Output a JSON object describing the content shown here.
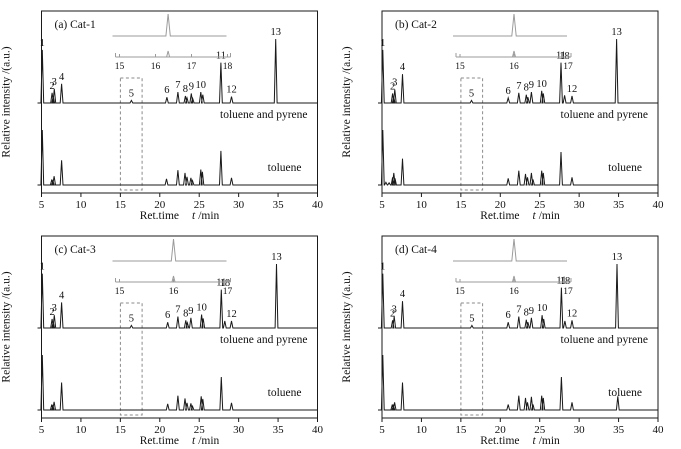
{
  "figure": {
    "ylabel": "Relative intensity /(a.u.)",
    "xlabel": {
      "prefix": "Ret.time",
      "italic": "t",
      "suffix": "/min"
    },
    "x_ticks": [
      5,
      10,
      15,
      20,
      25,
      30,
      35,
      40
    ],
    "xlim": [
      5,
      40
    ],
    "ink_color": "#1a1a1a",
    "inset_line_color": "#9b9b9b",
    "dashed_box_color": "#8a8a8a",
    "background_color": "#ffffff"
  },
  "chart_data": {
    "type": "line",
    "description": "GC chromatograms; peaks as [retention_time_min, relative_height, label?, label_y?]",
    "panels": [
      {
        "id": "a",
        "title": "(a) Cat-1",
        "inset": {
          "ticks": [
            15,
            16,
            17,
            18
          ],
          "peak_t": 16.35
        },
        "dashed_box": {
          "t1": 15.0,
          "t2": 17.75
        },
        "traces": [
          {
            "caption": "toluene  and pyrene",
            "peaks": [
              [
                5.1,
                0.83,
                "1"
              ],
              [
                6.35,
                0.16,
                "2"
              ],
              [
                6.48,
                0.1
              ],
              [
                6.62,
                0.22,
                "3"
              ],
              [
                7.55,
                0.3,
                "4"
              ],
              [
                16.4,
                0.04,
                "5"
              ],
              [
                20.9,
                0.09,
                "6"
              ],
              [
                22.3,
                0.17,
                "7"
              ],
              [
                23.25,
                0.11,
                "8"
              ],
              [
                23.45,
                0.08
              ],
              [
                24.0,
                0.15,
                "9"
              ],
              [
                24.18,
                0.07
              ],
              [
                25.2,
                0.17,
                "10"
              ],
              [
                25.45,
                0.13
              ],
              [
                27.75,
                0.63,
                "11"
              ],
              [
                29.1,
                0.1,
                "12"
              ],
              [
                34.7,
                1.0,
                "13"
              ]
            ]
          },
          {
            "caption": "toluene",
            "peaks": [
              [
                5.1,
                1.0
              ],
              [
                6.3,
                0.1
              ],
              [
                6.45,
                0.07
              ],
              [
                6.6,
                0.16
              ],
              [
                7.55,
                0.45
              ],
              [
                20.85,
                0.11
              ],
              [
                22.3,
                0.27
              ],
              [
                23.2,
                0.22
              ],
              [
                23.45,
                0.15
              ],
              [
                23.95,
                0.13
              ],
              [
                24.15,
                0.08
              ],
              [
                25.2,
                0.28
              ],
              [
                25.4,
                0.24
              ],
              [
                27.75,
                0.62
              ],
              [
                29.1,
                0.13
              ]
            ]
          }
        ]
      },
      {
        "id": "b",
        "title": "(b) Cat-2",
        "inset": {
          "ticks": [
            15,
            16,
            17
          ],
          "peak_t": 16.0
        },
        "dashed_box": {
          "t1": 15.0,
          "t2": 17.75
        },
        "traces": [
          {
            "caption": "toluene  and pyrene",
            "peaks": [
              [
                5.1,
                0.83,
                "1"
              ],
              [
                6.35,
                0.15,
                "2"
              ],
              [
                6.48,
                0.09
              ],
              [
                6.62,
                0.21,
                "3"
              ],
              [
                7.6,
                0.45,
                "4"
              ],
              [
                16.35,
                0.04,
                "5"
              ],
              [
                21.0,
                0.08,
                "6"
              ],
              [
                22.35,
                0.16,
                "7"
              ],
              [
                23.3,
                0.13,
                "8"
              ],
              [
                23.5,
                0.09
              ],
              [
                23.95,
                0.17,
                "9"
              ],
              [
                25.25,
                0.19,
                "10"
              ],
              [
                25.45,
                0.15
              ],
              [
                27.7,
                0.63,
                "11"
              ],
              [
                28.15,
                0.12,
                "18",
                59
              ],
              [
                29.1,
                0.11,
                "12"
              ],
              [
                34.75,
                1.0,
                "13"
              ]
            ]
          },
          {
            "caption": "toluene",
            "peaks": [
              [
                5.1,
                1.0
              ],
              [
                5.5,
                0.05
              ],
              [
                5.9,
                0.04
              ],
              [
                6.35,
                0.14
              ],
              [
                6.5,
                0.22
              ],
              [
                6.65,
                0.12
              ],
              [
                7.6,
                0.48
              ],
              [
                21.0,
                0.12
              ],
              [
                22.35,
                0.26
              ],
              [
                23.2,
                0.2
              ],
              [
                23.45,
                0.14
              ],
              [
                23.95,
                0.22
              ],
              [
                24.15,
                0.1
              ],
              [
                25.25,
                0.26
              ],
              [
                25.45,
                0.22
              ],
              [
                27.7,
                0.6
              ],
              [
                29.1,
                0.14
              ]
            ]
          }
        ]
      },
      {
        "id": "c",
        "title": "(c) Cat-3",
        "inset": {
          "ticks": [
            15,
            16,
            17
          ],
          "peak_t": 16.0
        },
        "dashed_box": {
          "t1": 15.0,
          "t2": 17.75
        },
        "traces": [
          {
            "caption": "toluene  and pyrene",
            "peaks": [
              [
                5.1,
                0.85,
                "1"
              ],
              [
                6.35,
                0.14,
                "2"
              ],
              [
                6.48,
                0.09
              ],
              [
                6.62,
                0.2,
                "3"
              ],
              [
                7.55,
                0.4,
                "4"
              ],
              [
                16.4,
                0.04,
                "5"
              ],
              [
                21.0,
                0.09,
                "6"
              ],
              [
                22.3,
                0.18,
                "7"
              ],
              [
                23.3,
                0.12,
                "8"
              ],
              [
                23.5,
                0.08
              ],
              [
                23.95,
                0.16,
                "9"
              ],
              [
                25.3,
                0.21,
                "10"
              ],
              [
                25.5,
                0.15
              ],
              [
                27.8,
                0.6,
                "11"
              ],
              [
                28.25,
                0.11,
                "18",
                61
              ],
              [
                29.1,
                0.11,
                "12"
              ],
              [
                34.8,
                1.0,
                "13"
              ]
            ]
          },
          {
            "caption": "toluene",
            "peaks": [
              [
                5.1,
                1.0
              ],
              [
                6.3,
                0.1
              ],
              [
                6.45,
                0.07
              ],
              [
                6.6,
                0.15
              ],
              [
                7.55,
                0.5
              ],
              [
                21.0,
                0.11
              ],
              [
                22.3,
                0.26
              ],
              [
                23.2,
                0.21
              ],
              [
                23.45,
                0.13
              ],
              [
                23.95,
                0.12
              ],
              [
                24.15,
                0.07
              ],
              [
                25.25,
                0.25
              ],
              [
                25.45,
                0.2
              ],
              [
                27.8,
                0.6
              ],
              [
                29.1,
                0.13
              ]
            ]
          }
        ]
      },
      {
        "id": "d",
        "title": "(d) Cat-4",
        "inset": {
          "ticks": [
            15,
            16,
            17
          ],
          "peak_t": 16.0
        },
        "dashed_box": {
          "t1": 15.0,
          "t2": 17.75
        },
        "traces": [
          {
            "caption": "toluene  and pyrene",
            "peaks": [
              [
                5.1,
                0.85,
                "1"
              ],
              [
                6.35,
                0.12,
                "2"
              ],
              [
                6.55,
                0.18,
                "3"
              ],
              [
                7.6,
                0.42,
                "4"
              ],
              [
                16.4,
                0.04,
                "5"
              ],
              [
                21.0,
                0.09,
                "6"
              ],
              [
                22.35,
                0.18,
                "7"
              ],
              [
                23.3,
                0.13,
                "8"
              ],
              [
                23.5,
                0.09
              ],
              [
                23.95,
                0.16,
                "9"
              ],
              [
                25.3,
                0.2,
                "10"
              ],
              [
                25.5,
                0.14
              ],
              [
                27.75,
                0.63,
                "11"
              ],
              [
                28.2,
                0.11,
                "18",
                59
              ],
              [
                29.1,
                0.12,
                "12"
              ],
              [
                34.8,
                1.0,
                "13"
              ]
            ]
          },
          {
            "caption": "toluene",
            "peaks": [
              [
                5.1,
                1.0
              ],
              [
                6.3,
                0.1
              ],
              [
                6.45,
                0.08
              ],
              [
                6.6,
                0.14
              ],
              [
                7.6,
                0.5
              ],
              [
                21.0,
                0.1
              ],
              [
                22.35,
                0.26
              ],
              [
                23.2,
                0.22
              ],
              [
                23.45,
                0.14
              ],
              [
                23.95,
                0.24
              ],
              [
                24.15,
                0.1
              ],
              [
                25.25,
                0.26
              ],
              [
                25.45,
                0.22
              ],
              [
                27.75,
                0.6
              ],
              [
                29.1,
                0.14
              ],
              [
                34.9,
                0.25
              ]
            ]
          }
        ]
      }
    ]
  }
}
